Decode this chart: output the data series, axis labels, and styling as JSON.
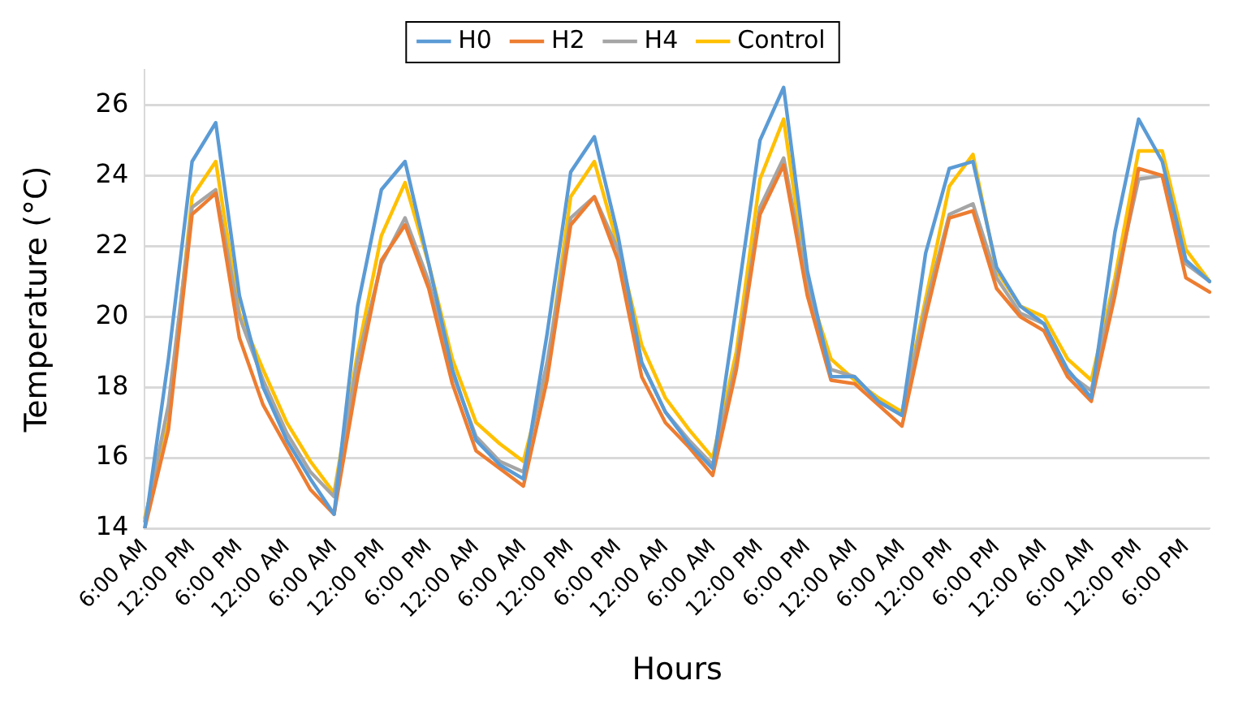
{
  "chart_data": {
    "type": "line",
    "xlabel": "Hours",
    "ylabel": "Temperature (°C)",
    "categories": [
      "6:00 AM",
      null,
      "12:00 PM",
      null,
      "6:00 PM",
      null,
      "12:00 AM",
      null,
      "6:00 AM",
      null,
      "12:00 PM",
      null,
      "6:00 PM",
      null,
      "12:00 AM",
      null,
      "6:00 AM",
      null,
      "12:00 PM",
      null,
      "6:00 PM",
      null,
      "12:00 AM",
      null,
      "6:00 AM",
      null,
      "12:00 PM",
      null,
      "6:00 PM",
      null,
      "12:00 AM",
      null,
      "6:00 AM",
      null,
      "12:00 PM",
      null,
      "6:00 PM",
      null,
      "12:00 AM",
      null,
      "6:00 AM",
      null,
      "12:00 PM",
      null,
      "6:00 PM",
      null
    ],
    "series": [
      {
        "name": "H0",
        "color": "#5b9bd5",
        "values": [
          14.0,
          18.8,
          24.4,
          25.5,
          20.6,
          18.0,
          16.5,
          15.4,
          14.4,
          20.3,
          23.6,
          24.4,
          21.5,
          18.5,
          16.5,
          15.8,
          15.4,
          19.5,
          24.1,
          25.1,
          22.3,
          18.7,
          17.3,
          16.4,
          15.7,
          20.3,
          25.0,
          26.5,
          21.3,
          18.3,
          18.3,
          17.6,
          17.2,
          21.8,
          24.2,
          24.4,
          21.4,
          20.3,
          19.8,
          18.5,
          17.7,
          22.4,
          25.6,
          24.4,
          21.6,
          21.0
        ]
      },
      {
        "name": "H2",
        "color": "#ed7d31",
        "values": [
          14.0,
          16.8,
          22.9,
          23.5,
          19.4,
          17.5,
          16.3,
          15.1,
          14.4,
          18.3,
          21.6,
          22.6,
          20.8,
          18.1,
          16.2,
          15.7,
          15.2,
          18.2,
          22.6,
          23.4,
          21.6,
          18.3,
          17.0,
          16.3,
          15.5,
          18.5,
          22.9,
          24.3,
          20.6,
          18.2,
          18.1,
          17.5,
          16.9,
          20.0,
          22.8,
          23.0,
          20.8,
          20.0,
          19.6,
          18.3,
          17.6,
          20.6,
          24.2,
          24.0,
          21.1,
          20.7
        ]
      },
      {
        "name": "H4",
        "color": "#a5a5a5",
        "values": [
          14.2,
          17.5,
          23.1,
          23.6,
          20.0,
          18.2,
          16.7,
          15.6,
          14.9,
          18.8,
          21.5,
          22.8,
          21.0,
          18.4,
          16.6,
          15.9,
          15.6,
          18.7,
          22.8,
          23.4,
          21.9,
          18.7,
          17.3,
          16.5,
          15.8,
          18.7,
          23.1,
          24.5,
          20.9,
          18.5,
          18.3,
          17.6,
          17.2,
          20.3,
          22.9,
          23.2,
          21.1,
          20.1,
          19.8,
          18.4,
          17.9,
          20.9,
          23.9,
          24.0,
          21.5,
          21.0
        ]
      },
      {
        "name": "Control",
        "color": "#ffc000",
        "values": [
          14.3,
          17.0,
          23.4,
          24.4,
          20.1,
          18.5,
          17.0,
          15.9,
          15.0,
          19.0,
          22.3,
          23.8,
          21.5,
          18.8,
          17.0,
          16.4,
          15.9,
          18.5,
          23.4,
          24.4,
          22.0,
          19.2,
          17.7,
          16.8,
          16.0,
          19.0,
          23.9,
          25.6,
          20.9,
          18.8,
          18.2,
          17.7,
          17.3,
          20.5,
          23.7,
          24.6,
          21.3,
          20.3,
          20.0,
          18.8,
          18.2,
          21.1,
          24.7,
          24.7,
          21.9,
          21.0
        ]
      }
    ],
    "ylim": [
      14,
      27
    ],
    "yticks": [
      14,
      16,
      18,
      20,
      22,
      24,
      26
    ],
    "grid": "y",
    "legend": "top",
    "marker": "none",
    "line_style": "solid"
  }
}
